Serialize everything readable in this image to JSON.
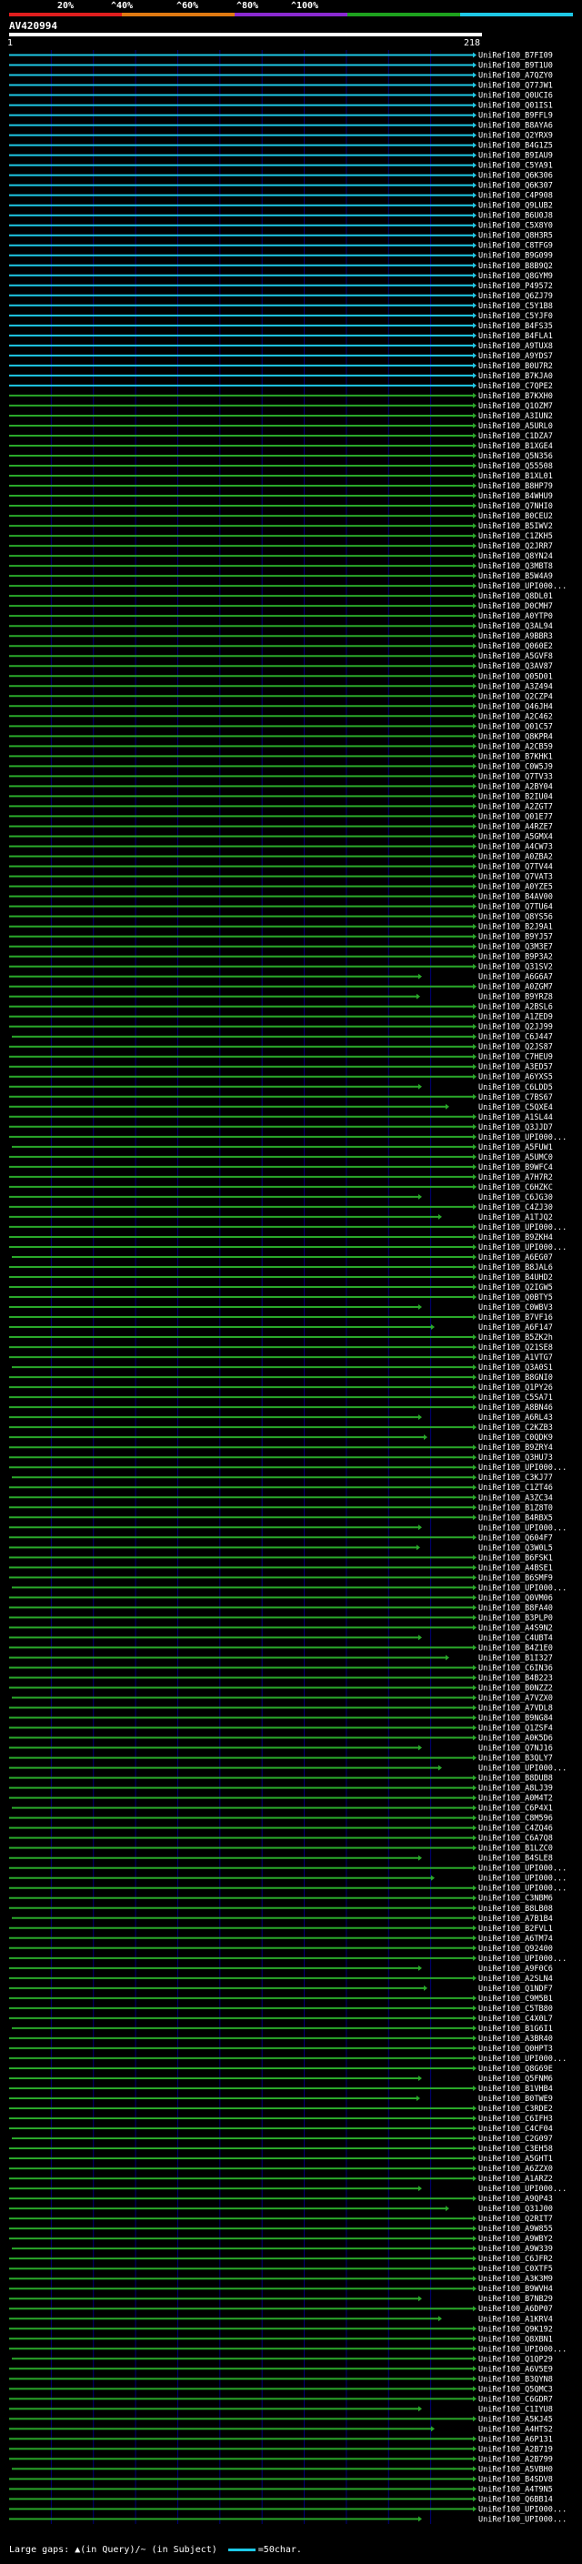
{
  "scale": {
    "labels": [
      "20%",
      "^40%",
      "^60%",
      "^80%",
      "^100%"
    ],
    "colors": [
      "#e01e1e",
      "#e07a12",
      "#8a2ad0",
      "#1ea21e",
      "#1ec8e6"
    ]
  },
  "query": {
    "id": "AV420994",
    "start": "1",
    "end": "218"
  },
  "hit_colors": {
    "cyan": "#1ec8e6",
    "green": "#2aa82a",
    "background_grid": "#00007a"
  },
  "hits": [
    {
      "label": "UniRef100_B7FI09",
      "color": "cyan"
    },
    {
      "label": "UniRef100_B9T1U0",
      "color": "cyan"
    },
    {
      "label": "UniRef100_A7QZY0",
      "color": "cyan"
    },
    {
      "label": "UniRef100_Q77JW1",
      "color": "cyan"
    },
    {
      "label": "UniRef100_Q0UCI6",
      "color": "cyan"
    },
    {
      "label": "UniRef100_Q01IS1",
      "color": "cyan"
    },
    {
      "label": "UniRef100_B9FFL9",
      "color": "cyan"
    },
    {
      "label": "UniRef100_B8AYA6",
      "color": "cyan"
    },
    {
      "label": "UniRef100_Q2YRX9",
      "color": "cyan"
    },
    {
      "label": "UniRef100_B4G1Z5",
      "color": "cyan"
    },
    {
      "label": "UniRef100_B9IAU9",
      "color": "cyan"
    },
    {
      "label": "UniRef100_C5YA91",
      "color": "cyan"
    },
    {
      "label": "UniRef100_Q6K306",
      "color": "cyan"
    },
    {
      "label": "UniRef100_Q6K307",
      "color": "cyan"
    },
    {
      "label": "UniRef100_C4P908",
      "color": "cyan"
    },
    {
      "label": "UniRef100_Q9LUB2",
      "color": "cyan"
    },
    {
      "label": "UniRef100_B6U0J8",
      "color": "cyan"
    },
    {
      "label": "UniRef100_C5X8Y0",
      "color": "cyan"
    },
    {
      "label": "UniRef100_Q8H3R5",
      "color": "cyan"
    },
    {
      "label": "UniRef100_C8TFG9",
      "color": "cyan"
    },
    {
      "label": "UniRef100_B9G099",
      "color": "cyan"
    },
    {
      "label": "UniRef100_B8B9Q2",
      "color": "cyan"
    },
    {
      "label": "UniRef100_Q8GYM9",
      "color": "cyan"
    },
    {
      "label": "UniRef100_P49572",
      "color": "cyan"
    },
    {
      "label": "UniRef100_Q6ZJ79",
      "color": "cyan"
    },
    {
      "label": "UniRef100_C5Y1B8",
      "color": "cyan"
    },
    {
      "label": "UniRef100_C5YJF0",
      "color": "cyan"
    },
    {
      "label": "UniRef100_B4FS35",
      "color": "cyan"
    },
    {
      "label": "UniRef100_B4FLA1",
      "color": "cyan"
    },
    {
      "label": "UniRef100_A9TUX8",
      "color": "cyan"
    },
    {
      "label": "UniRef100_A9YDS7",
      "color": "cyan"
    },
    {
      "label": "UniRef100_B0U7R2",
      "color": "cyan"
    },
    {
      "label": "UniRef100_B7KJA0",
      "color": "cyan"
    },
    {
      "label": "UniRef100_C7QPE2",
      "color": "cyan"
    },
    {
      "label": "UniRef100_B7KXH0",
      "color": "green"
    },
    {
      "label": "UniRef100_Q1OZM7",
      "color": "green"
    },
    {
      "label": "UniRef100_A3IUN2",
      "color": "green"
    },
    {
      "label": "UniRef100_A5URL0",
      "color": "green"
    },
    {
      "label": "UniRef100_C1DZA7",
      "color": "green"
    },
    {
      "label": "UniRef100_B1XGE4",
      "color": "green"
    },
    {
      "label": "UniRef100_Q5N356",
      "color": "green"
    },
    {
      "label": "UniRef100_Q55508",
      "color": "green"
    },
    {
      "label": "UniRef100_B1XL01",
      "color": "green"
    },
    {
      "label": "UniRef100_B8HP79",
      "color": "green"
    },
    {
      "label": "UniRef100_B4WHU9",
      "color": "green"
    },
    {
      "label": "UniRef100_Q7NHI0",
      "color": "green"
    },
    {
      "label": "UniRef100_B0CEU2",
      "color": "green"
    },
    {
      "label": "UniRef100_B5IWV2",
      "color": "green"
    },
    {
      "label": "UniRef100_C1ZKH5",
      "color": "green"
    },
    {
      "label": "UniRef100_Q2JRR7",
      "color": "green"
    },
    {
      "label": "UniRef100_Q8YN24",
      "color": "green"
    },
    {
      "label": "UniRef100_Q3MBT8",
      "color": "green"
    },
    {
      "label": "UniRef100_B5W4A9",
      "color": "green"
    },
    {
      "label": "UniRef100_UPI000...",
      "color": "green"
    },
    {
      "label": "UniRef100_Q8DL01",
      "color": "green"
    },
    {
      "label": "UniRef100_D0CMH7",
      "color": "green"
    },
    {
      "label": "UniRef100_A0YTP0",
      "color": "green"
    },
    {
      "label": "UniRef100_Q3AL94",
      "color": "green"
    },
    {
      "label": "UniRef100_A9BBR3",
      "color": "green"
    },
    {
      "label": "UniRef100_Q060E2",
      "color": "green"
    },
    {
      "label": "UniRef100_A5GVF8",
      "color": "green"
    },
    {
      "label": "UniRef100_Q3AV87",
      "color": "green"
    },
    {
      "label": "UniRef100_Q05D01",
      "color": "green"
    },
    {
      "label": "UniRef100_A3Z494",
      "color": "green"
    },
    {
      "label": "UniRef100_Q2CZP4",
      "color": "green"
    },
    {
      "label": "UniRef100_Q46JH4",
      "color": "green"
    },
    {
      "label": "UniRef100_A2C462",
      "color": "green"
    },
    {
      "label": "UniRef100_Q01C57",
      "color": "green"
    },
    {
      "label": "UniRef100_Q8KPR4",
      "color": "green"
    },
    {
      "label": "UniRef100_A2CB59",
      "color": "green"
    },
    {
      "label": "UniRef100_B7KHK1",
      "color": "green"
    },
    {
      "label": "UniRef100_C0W5J9",
      "color": "green"
    },
    {
      "label": "UniRef100_Q7TV33",
      "color": "green"
    },
    {
      "label": "UniRef100_A2BY04",
      "color": "green"
    },
    {
      "label": "UniRef100_B2IU04",
      "color": "green"
    },
    {
      "label": "UniRef100_A2ZGT7",
      "color": "green"
    },
    {
      "label": "UniRef100_Q01E77",
      "color": "green"
    },
    {
      "label": "UniRef100_A4RZE7",
      "color": "green"
    },
    {
      "label": "UniRef100_A5GMX4",
      "color": "green"
    },
    {
      "label": "UniRef100_A4CW73",
      "color": "green"
    },
    {
      "label": "UniRef100_A0ZBA2",
      "color": "green"
    },
    {
      "label": "UniRef100_Q7TV44",
      "color": "green"
    },
    {
      "label": "UniRef100_Q7VAT3",
      "color": "green"
    },
    {
      "label": "UniRef100_A0YZE5",
      "color": "green"
    },
    {
      "label": "UniRef100_B4AV00",
      "color": "green"
    },
    {
      "label": "UniRef100_Q7TU64",
      "color": "green"
    },
    {
      "label": "UniRef100_Q8YS56",
      "color": "green"
    },
    {
      "label": "UniRef100_B2J9A1",
      "color": "green"
    },
    {
      "label": "UniRef100_B9YJ57",
      "color": "green"
    },
    {
      "label": "UniRef100_Q3M3E7",
      "color": "green"
    },
    {
      "label": "UniRef100_B9P3A2",
      "color": "green"
    },
    {
      "label": "UniRef100_Q31SV2",
      "color": "green"
    },
    {
      "label": "UniRef100_A6G6A7",
      "color": "green"
    },
    {
      "label": "UniRef100_A0ZGM7",
      "color": "green"
    },
    {
      "label": "UniRef100_B9YRZ8",
      "color": "green"
    },
    {
      "label": "UniRef100_A2BSL6",
      "color": "green"
    },
    {
      "label": "UniRef100_A1ZED9",
      "color": "green"
    },
    {
      "label": "UniRef100_Q2JJ99",
      "color": "green"
    },
    {
      "label": "UniRef100_C6J447",
      "color": "green"
    },
    {
      "label": "UniRef100_Q2JS87",
      "color": "green"
    },
    {
      "label": "UniRef100_C7HEU9",
      "color": "green"
    },
    {
      "label": "UniRef100_A3ED57",
      "color": "green"
    },
    {
      "label": "UniRef100_A6YXS5",
      "color": "green"
    },
    {
      "label": "UniRef100_C6LDD5",
      "color": "green"
    },
    {
      "label": "UniRef100_C7BS67",
      "color": "green"
    },
    {
      "label": "UniRef100_C5QXE4",
      "color": "green"
    },
    {
      "label": "UniRef100_A1SL44",
      "color": "green"
    },
    {
      "label": "UniRef100_Q3JJD7",
      "color": "green"
    },
    {
      "label": "UniRef100_UPI000...",
      "color": "green"
    },
    {
      "label": "UniRef100_A5FUW1",
      "color": "green"
    },
    {
      "label": "UniRef100_A5UMC0",
      "color": "green"
    },
    {
      "label": "UniRef100_B9WFC4",
      "color": "green"
    },
    {
      "label": "UniRef100_A7H7R2",
      "color": "green"
    },
    {
      "label": "UniRef100_C6HZKC",
      "color": "green"
    },
    {
      "label": "UniRef100_C6JG30",
      "color": "green"
    },
    {
      "label": "UniRef100_C4ZJ30",
      "color": "green"
    },
    {
      "label": "UniRef100_A1TJQ2",
      "color": "green"
    },
    {
      "label": "UniRef100_UPI000...",
      "color": "green"
    },
    {
      "label": "UniRef100_B9ZKH4",
      "color": "green"
    },
    {
      "label": "UniRef100_UPI000...",
      "color": "green"
    },
    {
      "label": "UniRef100_A6EG07",
      "color": "green"
    },
    {
      "label": "UniRef100_B8JAL6",
      "color": "green"
    },
    {
      "label": "UniRef100_B4UHD2",
      "color": "green"
    },
    {
      "label": "UniRef100_Q2IGW5",
      "color": "green"
    },
    {
      "label": "UniRef100_Q0BTY5",
      "color": "green"
    },
    {
      "label": "UniRef100_C0WBV3",
      "color": "green"
    },
    {
      "label": "UniRef100_B7VF16",
      "color": "green"
    },
    {
      "label": "UniRef100_A6F147",
      "color": "green"
    },
    {
      "label": "UniRef100_B5ZK2h",
      "color": "green"
    },
    {
      "label": "UniRef100_Q21SE8",
      "color": "green"
    },
    {
      "label": "UniRef100_A1VTG7",
      "color": "green"
    },
    {
      "label": "UniRef100_Q3A0S1",
      "color": "green"
    },
    {
      "label": "UniRef100_B8GNI0",
      "color": "green"
    },
    {
      "label": "UniRef100_Q1PY26",
      "color": "green"
    },
    {
      "label": "UniRef100_C5SA71",
      "color": "green"
    },
    {
      "label": "UniRef100_A8BN46",
      "color": "green"
    },
    {
      "label": "UniRef100_A6RL43",
      "color": "green"
    },
    {
      "label": "UniRef100_C2KZB3",
      "color": "green"
    },
    {
      "label": "UniRef100_C0QDK9",
      "color": "green"
    },
    {
      "label": "UniRef100_B9ZRY4",
      "color": "green"
    },
    {
      "label": "UniRef100_Q3HU73",
      "color": "green"
    },
    {
      "label": "UniRef100_UPI000...",
      "color": "green"
    },
    {
      "label": "UniRef100_C3KJ77",
      "color": "green"
    },
    {
      "label": "UniRef100_C1ZT46",
      "color": "green"
    },
    {
      "label": "UniRef100_A3ZC34",
      "color": "green"
    },
    {
      "label": "UniRef100_B1Z8T0",
      "color": "green"
    },
    {
      "label": "UniRef100_B4RBX5",
      "color": "green"
    },
    {
      "label": "UniRef100_UPI000...",
      "color": "green"
    },
    {
      "label": "UniRef100_Q604F7",
      "color": "green"
    },
    {
      "label": "UniRef100_Q3W0L5",
      "color": "green"
    },
    {
      "label": "UniRef100_B6FSK1",
      "color": "green"
    },
    {
      "label": "UniRef100_A4BSE1",
      "color": "green"
    },
    {
      "label": "UniRef100_B6SMF9",
      "color": "green"
    },
    {
      "label": "UniRef100_UPI000...",
      "color": "green"
    },
    {
      "label": "UniRef100_Q0VM06",
      "color": "green"
    },
    {
      "label": "UniRef100_B8FA40",
      "color": "green"
    },
    {
      "label": "UniRef100_B3PLP0",
      "color": "green"
    },
    {
      "label": "UniRef100_A4S9N2",
      "color": "green"
    },
    {
      "label": "UniRef100_C4UBT4",
      "color": "green"
    },
    {
      "label": "UniRef100_B4Z1E0",
      "color": "green"
    },
    {
      "label": "UniRef100_B1I327",
      "color": "green"
    },
    {
      "label": "UniRef100_C6IN36",
      "color": "green"
    },
    {
      "label": "UniRef100_B4B223",
      "color": "green"
    },
    {
      "label": "UniRef100_B0NZZ2",
      "color": "green"
    },
    {
      "label": "UniRef100_A7VZX0",
      "color": "green"
    },
    {
      "label": "UniRef100_A7VDL8",
      "color": "green"
    },
    {
      "label": "UniRef100_B9NG84",
      "color": "green"
    },
    {
      "label": "UniRef100_Q1ZSF4",
      "color": "green"
    },
    {
      "label": "UniRef100_A0K5D6",
      "color": "green"
    },
    {
      "label": "UniRef100_Q7NJ16",
      "color": "green"
    },
    {
      "label": "UniRef100_B3QLY7",
      "color": "green"
    },
    {
      "label": "UniRef100_UPI000...",
      "color": "green"
    },
    {
      "label": "UniRef100_B8DUB8",
      "color": "green"
    },
    {
      "label": "UniRef100_A8LJ39",
      "color": "green"
    },
    {
      "label": "UniRef100_A0M4T2",
      "color": "green"
    },
    {
      "label": "UniRef100_C6P4X1",
      "color": "green"
    },
    {
      "label": "UniRef100_C8M596",
      "color": "green"
    },
    {
      "label": "UniRef100_C4ZQ46",
      "color": "green"
    },
    {
      "label": "UniRef100_C6A7Q8",
      "color": "green"
    },
    {
      "label": "UniRef100_B1LZC0",
      "color": "green"
    },
    {
      "label": "UniRef100_B4SLE8",
      "color": "green"
    },
    {
      "label": "UniRef100_UPI000...",
      "color": "green"
    },
    {
      "label": "UniRef100_UPI000...",
      "color": "green"
    },
    {
      "label": "UniRef100_UPI000...",
      "color": "green"
    },
    {
      "label": "UniRef100_C3NBM6",
      "color": "green"
    },
    {
      "label": "UniRef100_B8LB08",
      "color": "green"
    },
    {
      "label": "UniRef100_A7B1B4",
      "color": "green"
    },
    {
      "label": "UniRef100_B2FVL1",
      "color": "green"
    },
    {
      "label": "UniRef100_A6TM74",
      "color": "green"
    },
    {
      "label": "UniRef100_Q92400",
      "color": "green"
    },
    {
      "label": "UniRef100_UPI000...",
      "color": "green"
    },
    {
      "label": "UniRef100_A9F0C6",
      "color": "green"
    },
    {
      "label": "UniRef100_A2SLN4",
      "color": "green"
    },
    {
      "label": "UniRef100_Q1NDF7",
      "color": "green"
    },
    {
      "label": "UniRef100_C9M5B1",
      "color": "green"
    },
    {
      "label": "UniRef100_C5TB80",
      "color": "green"
    },
    {
      "label": "UniRef100_C4X0L7",
      "color": "green"
    },
    {
      "label": "UniRef100_B1G6I1",
      "color": "green"
    },
    {
      "label": "UniRef100_A3BR40",
      "color": "green"
    },
    {
      "label": "UniRef100_Q0HPT3",
      "color": "green"
    },
    {
      "label": "UniRef100_UPI000...",
      "color": "green"
    },
    {
      "label": "UniRef100_Q8G69E",
      "color": "green"
    },
    {
      "label": "UniRef100_Q5FNM6",
      "color": "green"
    },
    {
      "label": "UniRef100_B1VHB4",
      "color": "green"
    },
    {
      "label": "UniRef100_B0TWE9",
      "color": "green"
    },
    {
      "label": "UniRef100_C3RDE2",
      "color": "green"
    },
    {
      "label": "UniRef100_C6IFH3",
      "color": "green"
    },
    {
      "label": "UniRef100_C4CF04",
      "color": "green"
    },
    {
      "label": "UniRef100_C2G097",
      "color": "green"
    },
    {
      "label": "UniRef100_C3EH58",
      "color": "green"
    },
    {
      "label": "UniRef100_A5GHT1",
      "color": "green"
    },
    {
      "label": "UniRef100_A6ZZX0",
      "color": "green"
    },
    {
      "label": "UniRef100_A1ARZ2",
      "color": "green"
    },
    {
      "label": "UniRef100_UPI000...",
      "color": "green"
    },
    {
      "label": "UniRef100_A9QP43",
      "color": "green"
    },
    {
      "label": "UniRef100_Q31J00",
      "color": "green"
    },
    {
      "label": "UniRef100_Q2RIT7",
      "color": "green"
    },
    {
      "label": "UniRef100_A9W855",
      "color": "green"
    },
    {
      "label": "UniRef100_A9WBY2",
      "color": "green"
    },
    {
      "label": "UniRef100_A9W339",
      "color": "green"
    },
    {
      "label": "UniRef100_C6JFR2",
      "color": "green"
    },
    {
      "label": "UniRef100_C0XTF5",
      "color": "green"
    },
    {
      "label": "UniRef100_A3K3M9",
      "color": "green"
    },
    {
      "label": "UniRef100_B9WVH4",
      "color": "green"
    },
    {
      "label": "UniRef100_B7NB29",
      "color": "green"
    },
    {
      "label": "UniRef100_A6DP07",
      "color": "green"
    },
    {
      "label": "UniRef100_A1KRV4",
      "color": "green"
    },
    {
      "label": "UniRef100_Q9K192",
      "color": "green"
    },
    {
      "label": "UniRef100_Q8XBN1",
      "color": "green"
    },
    {
      "label": "UniRef100_UPI000...",
      "color": "green"
    },
    {
      "label": "UniRef100_Q1QP29",
      "color": "green"
    },
    {
      "label": "UniRef100_A6V5E9",
      "color": "green"
    },
    {
      "label": "UniRef100_B3QYN8",
      "color": "green"
    },
    {
      "label": "UniRef100_Q5QMC3",
      "color": "green"
    },
    {
      "label": "UniRef100_C6GDR7",
      "color": "green"
    },
    {
      "label": "UniRef100_C1IYU8",
      "color": "green"
    },
    {
      "label": "UniRef100_A5KJ45",
      "color": "green"
    },
    {
      "label": "UniRef100_A4HTS2",
      "color": "green"
    },
    {
      "label": "UniRef100_A6P131",
      "color": "green"
    },
    {
      "label": "UniRef100_A2B719",
      "color": "green"
    },
    {
      "label": "UniRef100_A2B799",
      "color": "green"
    },
    {
      "label": "UniRef100_A5VBH0",
      "color": "green"
    },
    {
      "label": "UniRef100_B4SDV8",
      "color": "green"
    },
    {
      "label": "UniRef100_A4T9N5",
      "color": "green"
    },
    {
      "label": "UniRef100_Q6BB14",
      "color": "green"
    },
    {
      "label": "UniRef100_UPI000...",
      "color": "green"
    },
    {
      "label": "UniRef100_UPI000...",
      "color": "green"
    }
  ],
  "legend": {
    "text": "Large gaps: ▲(in Query)/~ (in Subject)",
    "scale_text": "=50char."
  }
}
